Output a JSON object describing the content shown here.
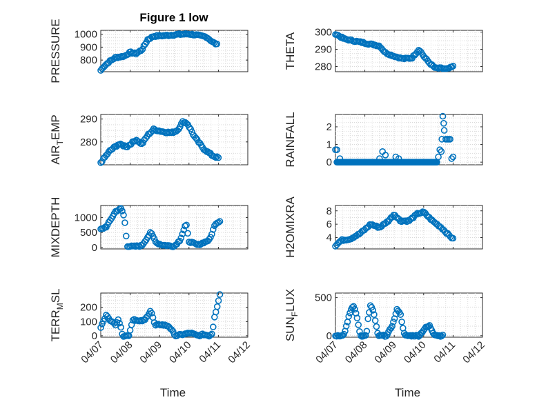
{
  "title": "Figure 1 low",
  "xlabel": "Time",
  "x_ticks": [
    "04/07",
    "04/08",
    "04/09",
    "04/10",
    "04/11",
    "04/12"
  ],
  "marker_color": "#0072BD",
  "chart_data": [
    {
      "type": "scatter",
      "id": "pressure",
      "ylabel": "PRESSURE",
      "yticks": [
        800,
        900,
        1000
      ],
      "ylim": [
        710,
        1030
      ],
      "grid": true,
      "x_tick_labels": false,
      "knots": [
        [
          0,
          720
        ],
        [
          0.1,
          750
        ],
        [
          0.3,
          790
        ],
        [
          0.5,
          820
        ],
        [
          0.8,
          830
        ],
        [
          1.0,
          860
        ],
        [
          1.2,
          850
        ],
        [
          1.4,
          880
        ],
        [
          1.6,
          960
        ],
        [
          1.8,
          985
        ],
        [
          2.2,
          990
        ],
        [
          2.6,
          998
        ],
        [
          3.0,
          1002
        ],
        [
          3.3,
          992
        ],
        [
          3.6,
          978
        ],
        [
          3.8,
          940
        ],
        [
          3.95,
          920
        ]
      ]
    },
    {
      "type": "scatter",
      "id": "theta",
      "ylabel": "THETA",
      "yticks": [
        280,
        290,
        300
      ],
      "ylim": [
        277,
        301
      ],
      "grid": true,
      "x_tick_labels": false,
      "knots": [
        [
          0,
          299
        ],
        [
          0.3,
          296
        ],
        [
          0.6,
          295
        ],
        [
          0.9,
          294
        ],
        [
          1.2,
          293
        ],
        [
          1.5,
          292
        ],
        [
          1.7,
          288
        ],
        [
          2.0,
          286
        ],
        [
          2.3,
          284.5
        ],
        [
          2.6,
          285
        ],
        [
          2.85,
          290
        ],
        [
          3.0,
          286
        ],
        [
          3.2,
          282
        ],
        [
          3.4,
          279
        ],
        [
          3.6,
          279
        ],
        [
          3.8,
          278.5
        ],
        [
          4.0,
          280
        ]
      ]
    },
    {
      "type": "scatter",
      "id": "air-temp",
      "ylabel": "AIR_TEMP",
      "yticks": [
        280,
        290
      ],
      "ylim": [
        270,
        292
      ],
      "grid": true,
      "x_tick_labels": false,
      "knots": [
        [
          0,
          271
        ],
        [
          0.3,
          276
        ],
        [
          0.6,
          279
        ],
        [
          0.9,
          278
        ],
        [
          1.2,
          281
        ],
        [
          1.4,
          279
        ],
        [
          1.6,
          283
        ],
        [
          1.8,
          285.5
        ],
        [
          2.1,
          284.5
        ],
        [
          2.4,
          284
        ],
        [
          2.6,
          285
        ],
        [
          2.8,
          289
        ],
        [
          2.95,
          288
        ],
        [
          3.2,
          282
        ],
        [
          3.5,
          277
        ],
        [
          3.8,
          274
        ],
        [
          4.0,
          273
        ]
      ]
    },
    {
      "type": "scatter",
      "id": "rainfall",
      "ylabel": "RAINFALL",
      "yticks": [
        0,
        1,
        2
      ],
      "ylim": [
        -0.15,
        2.7
      ],
      "grid": true,
      "x_tick_labels": false,
      "zero_range": [
        0.05,
        3.45
      ],
      "zero_count": 120,
      "points": [
        [
          0,
          0.7
        ],
        [
          0.05,
          0.7
        ],
        [
          0.15,
          0.2
        ],
        [
          1.5,
          0.2
        ],
        [
          1.6,
          0.6
        ],
        [
          1.7,
          0.4
        ],
        [
          2.05,
          0.3
        ],
        [
          2.15,
          0.2
        ],
        [
          3.5,
          0.3
        ],
        [
          3.55,
          0.7
        ],
        [
          3.6,
          0.6
        ],
        [
          3.62,
          1.3
        ],
        [
          3.65,
          2.6
        ],
        [
          3.68,
          2.2
        ],
        [
          3.7,
          1.8
        ],
        [
          3.75,
          1.3
        ],
        [
          3.8,
          1.3
        ],
        [
          3.85,
          1.3
        ],
        [
          3.9,
          1.3
        ],
        [
          3.95,
          0.2
        ],
        [
          4.0,
          0.3
        ]
      ]
    },
    {
      "type": "scatter",
      "id": "mixdepth",
      "ylabel": "MIXDEPTH",
      "yticks": [
        0,
        500,
        1000
      ],
      "ylim": [
        -50,
        1400
      ],
      "grid": true,
      "x_tick_labels": false,
      "knots": [
        [
          0,
          600
        ],
        [
          0.2,
          700
        ],
        [
          0.5,
          1200
        ],
        [
          0.7,
          1300
        ],
        [
          0.8,
          1000
        ],
        [
          0.9,
          50
        ],
        [
          1.1,
          30
        ],
        [
          1.4,
          60
        ],
        [
          1.7,
          500
        ],
        [
          1.9,
          150
        ],
        [
          2.1,
          80
        ],
        [
          2.5,
          40
        ],
        [
          2.7,
          250
        ],
        [
          2.9,
          800
        ],
        [
          3.0,
          200
        ],
        [
          3.3,
          80
        ],
        [
          3.7,
          250
        ],
        [
          3.9,
          800
        ],
        [
          4.05,
          880
        ]
      ]
    },
    {
      "type": "scatter",
      "id": "h2omixra",
      "ylabel": "H2OMIXRA",
      "yticks": [
        4,
        6,
        8
      ],
      "ylim": [
        2.3,
        8.8
      ],
      "grid": true,
      "x_tick_labels": false,
      "knots": [
        [
          0,
          2.8
        ],
        [
          0.2,
          3.6
        ],
        [
          0.5,
          3.8
        ],
        [
          0.8,
          4.5
        ],
        [
          1.0,
          5.2
        ],
        [
          1.2,
          6.0
        ],
        [
          1.5,
          5.5
        ],
        [
          1.8,
          6.5
        ],
        [
          2.0,
          7.5
        ],
        [
          2.2,
          6.5
        ],
        [
          2.5,
          6.5
        ],
        [
          2.8,
          7.6
        ],
        [
          3.0,
          7.8
        ],
        [
          3.3,
          6.5
        ],
        [
          3.6,
          5.5
        ],
        [
          3.8,
          4.6
        ],
        [
          4.0,
          3.8
        ]
      ]
    },
    {
      "type": "scatter",
      "id": "terr-msl",
      "ylabel": "TERR_MSL",
      "yticks": [
        0,
        100,
        200
      ],
      "ylim": [
        -10,
        300
      ],
      "grid": true,
      "x_tick_labels": true,
      "knots": [
        [
          0,
          60
        ],
        [
          0.2,
          150
        ],
        [
          0.35,
          100
        ],
        [
          0.5,
          80
        ],
        [
          0.6,
          120
        ],
        [
          0.75,
          0
        ],
        [
          0.95,
          0
        ],
        [
          1.1,
          120
        ],
        [
          1.3,
          100
        ],
        [
          1.5,
          110
        ],
        [
          1.7,
          180
        ],
        [
          1.85,
          70
        ],
        [
          2.0,
          80
        ],
        [
          2.3,
          70
        ],
        [
          2.55,
          0
        ],
        [
          2.8,
          10
        ],
        [
          3.05,
          20
        ],
        [
          3.3,
          0
        ],
        [
          3.5,
          10
        ],
        [
          3.7,
          0
        ],
        [
          3.8,
          20
        ],
        [
          3.85,
          120
        ],
        [
          3.95,
          200
        ],
        [
          4.05,
          290
        ]
      ]
    },
    {
      "type": "scatter",
      "id": "sun-flux",
      "ylabel": "SUN_FLUX",
      "yticks": [
        0,
        500
      ],
      "ylim": [
        -20,
        560
      ],
      "grid": true,
      "x_tick_labels": true,
      "knots": [
        [
          0,
          0
        ],
        [
          0.15,
          0
        ],
        [
          0.3,
          20
        ],
        [
          0.45,
          250
        ],
        [
          0.6,
          400
        ],
        [
          0.7,
          300
        ],
        [
          0.85,
          0
        ],
        [
          1.05,
          0
        ],
        [
          1.1,
          200
        ],
        [
          1.2,
          410
        ],
        [
          1.3,
          300
        ],
        [
          1.45,
          0
        ],
        [
          1.75,
          0
        ],
        [
          1.95,
          150
        ],
        [
          2.1,
          350
        ],
        [
          2.2,
          300
        ],
        [
          2.35,
          0
        ],
        [
          2.7,
          0
        ],
        [
          2.85,
          0
        ],
        [
          3.05,
          100
        ],
        [
          3.2,
          130
        ],
        [
          3.35,
          20
        ],
        [
          3.5,
          0
        ],
        [
          3.65,
          0
        ]
      ]
    }
  ]
}
